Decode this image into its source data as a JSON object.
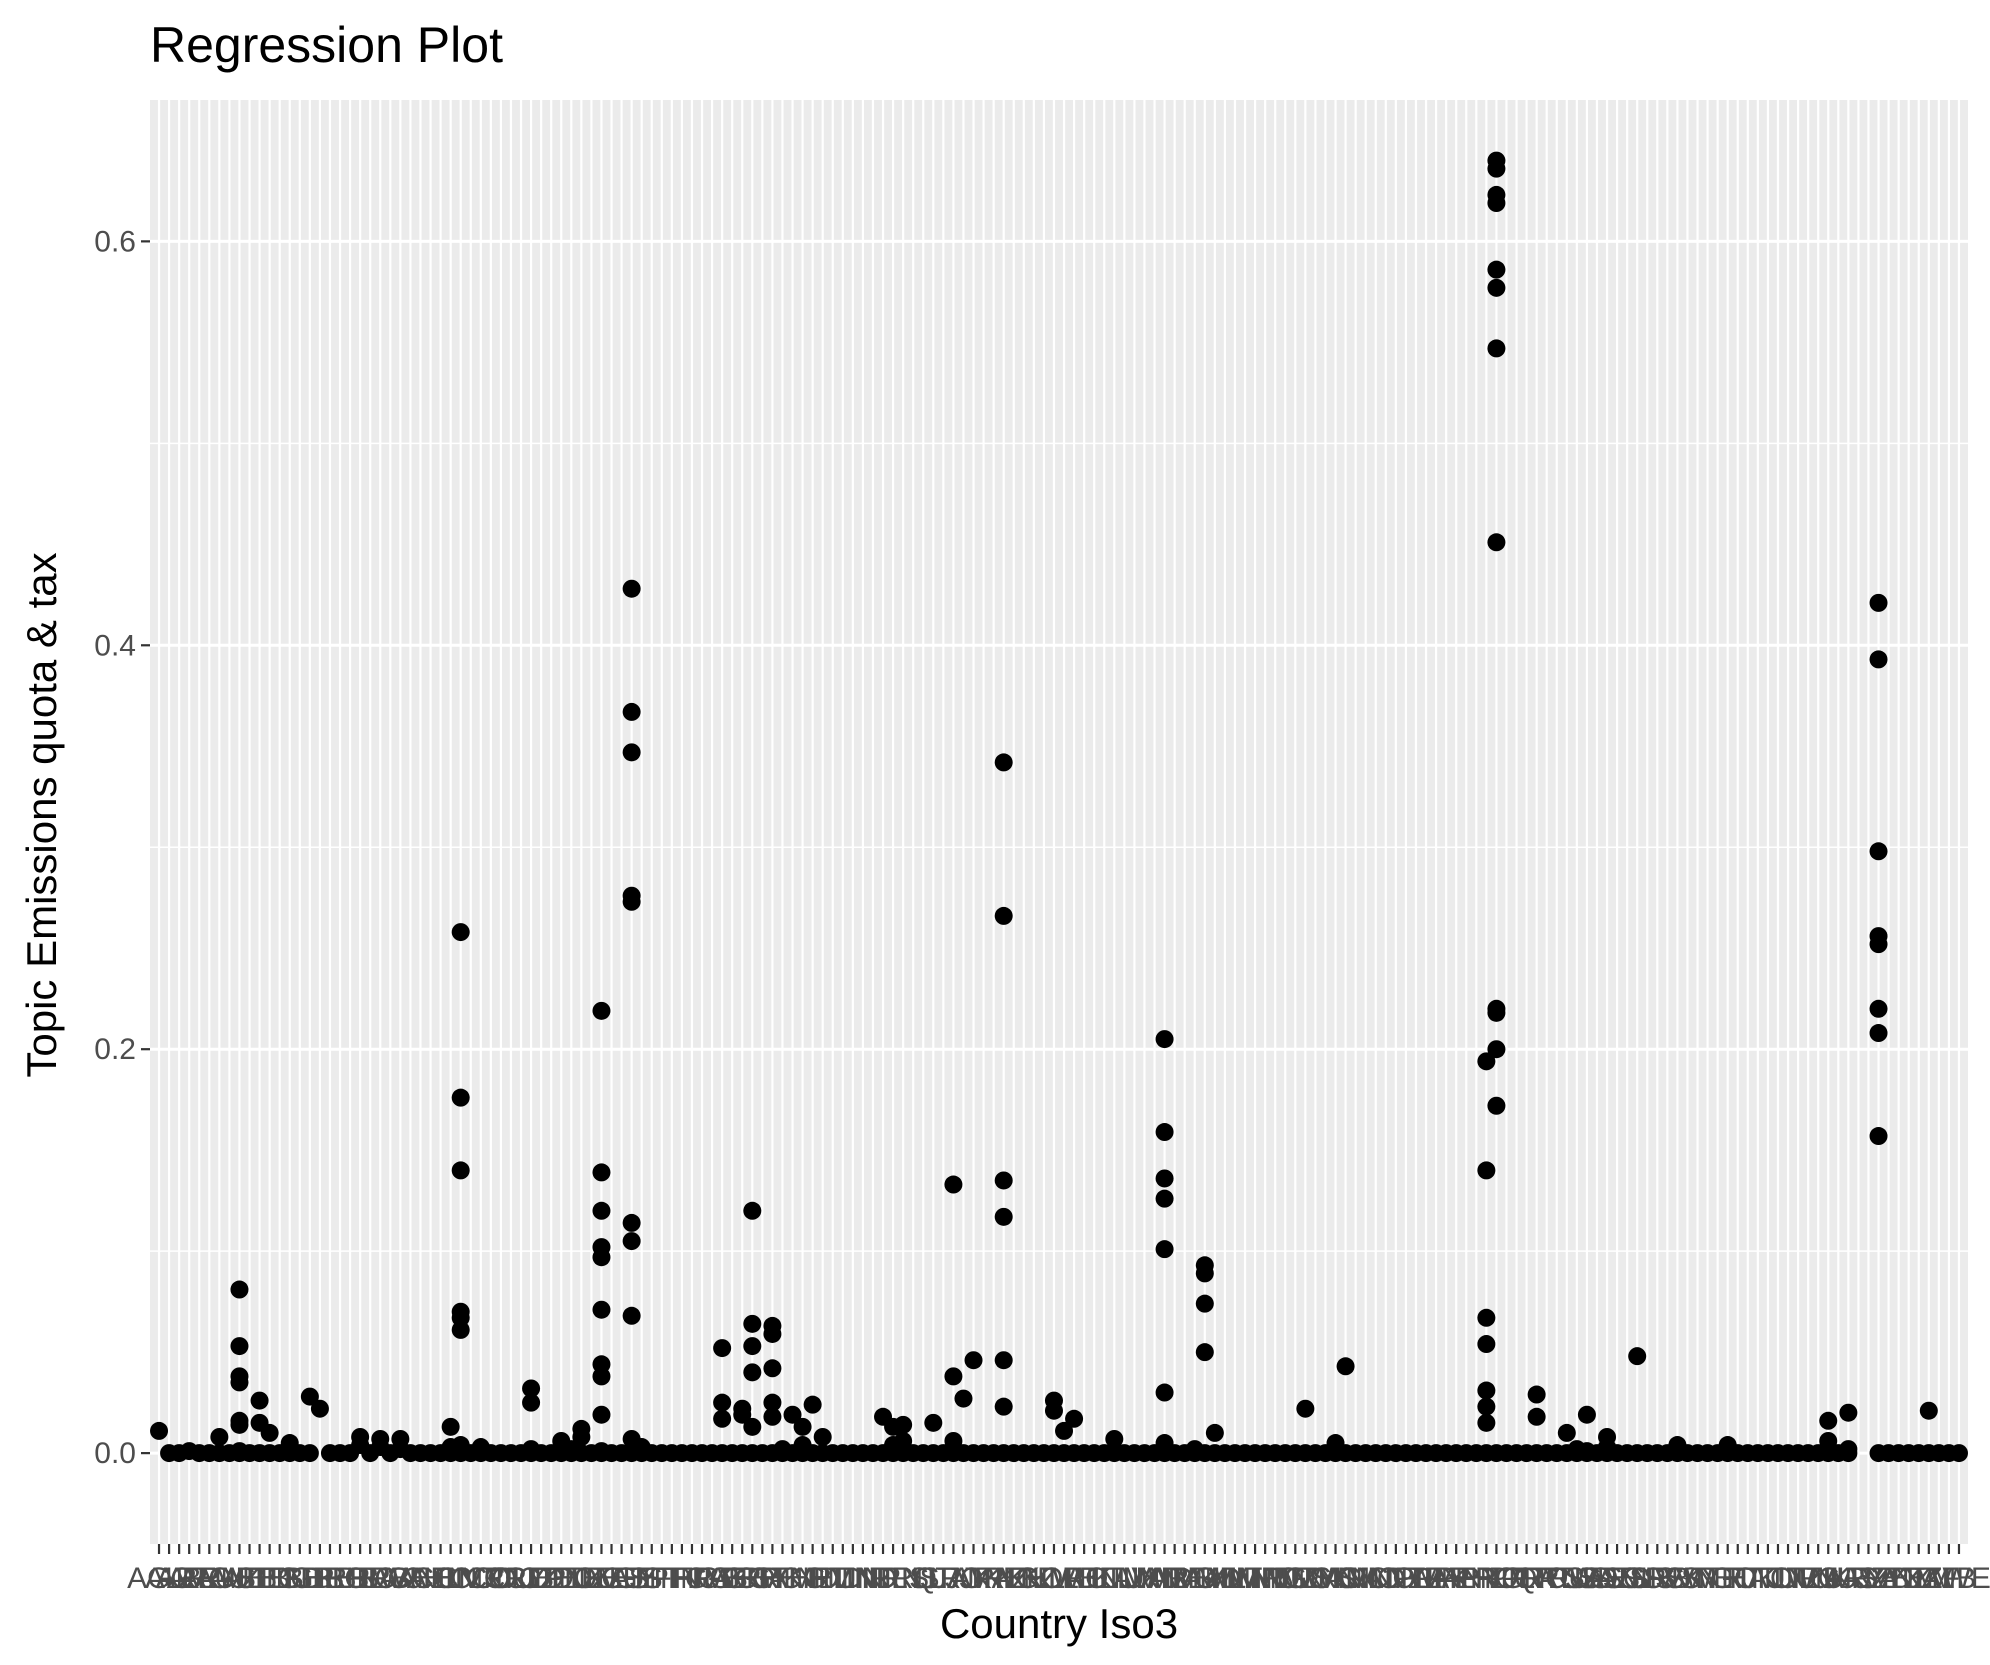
{
  "chart_data": {
    "type": "scatter",
    "title": "Regression Plot",
    "xlabel": "Country Iso3",
    "ylabel": "Topic Emissions quota & tax",
    "ylim": [
      -0.045,
      0.67
    ],
    "yticks": [
      0.0,
      0.2,
      0.4,
      0.6
    ],
    "ytick_labels": [
      "0.0",
      "0.2",
      "0.4",
      "0.6"
    ],
    "n_categories": 180,
    "x_tick_labels": [
      "AGO",
      "ALB",
      "ARE",
      "ARG",
      "ARM",
      "AUS",
      "AUT",
      "AZE",
      "BEL",
      "BEN",
      "BGD",
      "BGR",
      "BHR",
      "BIH",
      "BLR",
      "BOL",
      "BRA",
      "BRB",
      "BWA",
      "CAN",
      "CHE",
      "CHL",
      "CHN",
      "CIV",
      "CMR",
      "COD",
      "COL",
      "CRI",
      "CUB",
      "CYP",
      "CZE",
      "DEU",
      "DNK",
      "DOM",
      "DZA",
      "ECU",
      "EGY",
      "ESP",
      "EST",
      "ETH",
      "FIN",
      "FJI",
      "FRA",
      "GAB",
      "GBR",
      "GEO",
      "GHA",
      "GRC",
      "GTM",
      "HKG",
      "HND",
      "HRV",
      "HTI",
      "HUN",
      "IDN",
      "IND",
      "IRL",
      "IRN",
      "IRQ",
      "ISL",
      "ISR",
      "ITA",
      "JAM",
      "JOR",
      "JPN",
      "KAZ",
      "KEN",
      "KGZ",
      "KHM",
      "KOR",
      "KWT",
      "LAO",
      "LBN",
      "LKA",
      "LTU",
      "LUX",
      "LVA",
      "MAR",
      "MDA",
      "MDG",
      "MEX",
      "MKD",
      "MLI",
      "MLT",
      "MMR",
      "MNE",
      "MNG",
      "MOZ",
      "MUS",
      "MWI",
      "MYS",
      "NAM",
      "NGA",
      "NIC",
      "NLD",
      "NOR",
      "NPL",
      "NZL",
      "OMN",
      "PAK",
      "PAN",
      "PER",
      "PHL",
      "PNG",
      "POL",
      "PRT",
      "PRY",
      "QAT",
      "ROU",
      "RUS",
      "RWA",
      "SAU",
      "SDN",
      "SEN",
      "SGP",
      "SLV",
      "SRB",
      "SVK",
      "SVN",
      "SWE",
      "SYR",
      "TGO",
      "THA",
      "TJK",
      "TTO",
      "TUN",
      "TUR",
      "TWN",
      "TZA",
      "UGA",
      "UKR",
      "URY",
      "USA",
      "UZB",
      "VEN",
      "VNM",
      "YEM",
      "ZAF",
      "ZMB",
      "ZWE"
    ],
    "points": [
      [
        0,
        0.011
      ],
      [
        1,
        0
      ],
      [
        2,
        0
      ],
      [
        3,
        0.001
      ],
      [
        4,
        0
      ],
      [
        5,
        0
      ],
      [
        6,
        0.008
      ],
      [
        6,
        0
      ],
      [
        7,
        0
      ],
      [
        8,
        0.081
      ],
      [
        8,
        0.053
      ],
      [
        8,
        0.038
      ],
      [
        8,
        0.035
      ],
      [
        8,
        0.016
      ],
      [
        8,
        0.014
      ],
      [
        8,
        0.001
      ],
      [
        8,
        0
      ],
      [
        9,
        0
      ],
      [
        10,
        0.026
      ],
      [
        10,
        0.015
      ],
      [
        10,
        0
      ],
      [
        11,
        0.01
      ],
      [
        11,
        0
      ],
      [
        12,
        0
      ],
      [
        13,
        0.005
      ],
      [
        13,
        0
      ],
      [
        14,
        0
      ],
      [
        15,
        0.028
      ],
      [
        15,
        0
      ],
      [
        16,
        0.022
      ],
      [
        17,
        0
      ],
      [
        18,
        0
      ],
      [
        19,
        0
      ],
      [
        20,
        0.008
      ],
      [
        20,
        0.004
      ],
      [
        21,
        0
      ],
      [
        22,
        0.007
      ],
      [
        22,
        0.003
      ],
      [
        23,
        0
      ],
      [
        24,
        0.007
      ],
      [
        24,
        0.002
      ],
      [
        25,
        0
      ],
      [
        26,
        0
      ],
      [
        27,
        0
      ],
      [
        28,
        0
      ],
      [
        29,
        0.013
      ],
      [
        29,
        0.003
      ],
      [
        29,
        0
      ],
      [
        30,
        0.258
      ],
      [
        30,
        0.176
      ],
      [
        30,
        0.14
      ],
      [
        30,
        0.07
      ],
      [
        30,
        0.067
      ],
      [
        30,
        0.061
      ],
      [
        30,
        0.004
      ],
      [
        30,
        0
      ],
      [
        31,
        0
      ],
      [
        32,
        0.003
      ],
      [
        32,
        0
      ],
      [
        33,
        0
      ],
      [
        34,
        0
      ],
      [
        35,
        0
      ],
      [
        36,
        0
      ],
      [
        37,
        0.032
      ],
      [
        37,
        0.025
      ],
      [
        37,
        0.002
      ],
      [
        37,
        0
      ],
      [
        38,
        0
      ],
      [
        39,
        0
      ],
      [
        40,
        0.006
      ],
      [
        40,
        0
      ],
      [
        41,
        0.002
      ],
      [
        41,
        0
      ],
      [
        42,
        0.012
      ],
      [
        42,
        0.008
      ],
      [
        42,
        0
      ],
      [
        43,
        0
      ],
      [
        44,
        0.219
      ],
      [
        44,
        0.139
      ],
      [
        44,
        0.12
      ],
      [
        44,
        0.102
      ],
      [
        44,
        0.097
      ],
      [
        44,
        0.071
      ],
      [
        44,
        0.044
      ],
      [
        44,
        0.038
      ],
      [
        44,
        0.019
      ],
      [
        44,
        0.001
      ],
      [
        44,
        0
      ],
      [
        45,
        0
      ],
      [
        46,
        0
      ],
      [
        47,
        0.428
      ],
      [
        47,
        0.367
      ],
      [
        47,
        0.347
      ],
      [
        47,
        0.276
      ],
      [
        47,
        0.273
      ],
      [
        47,
        0.114
      ],
      [
        47,
        0.105
      ],
      [
        47,
        0.068
      ],
      [
        47,
        0.007
      ],
      [
        47,
        0
      ],
      [
        48,
        0.003
      ],
      [
        48,
        0
      ],
      [
        49,
        0
      ],
      [
        50,
        0
      ],
      [
        51,
        0
      ],
      [
        52,
        0
      ],
      [
        53,
        0
      ],
      [
        54,
        0
      ],
      [
        55,
        0
      ],
      [
        56,
        0.052
      ],
      [
        56,
        0.025
      ],
      [
        56,
        0.017
      ],
      [
        56,
        0
      ],
      [
        57,
        0
      ],
      [
        58,
        0.022
      ],
      [
        58,
        0.019
      ],
      [
        58,
        0
      ],
      [
        59,
        0.12
      ],
      [
        59,
        0.064
      ],
      [
        59,
        0.053
      ],
      [
        59,
        0.04
      ],
      [
        59,
        0.013
      ],
      [
        59,
        0
      ],
      [
        60,
        0
      ],
      [
        61,
        0.063
      ],
      [
        61,
        0.059
      ],
      [
        61,
        0.042
      ],
      [
        61,
        0.025
      ],
      [
        61,
        0.018
      ],
      [
        61,
        0
      ],
      [
        62,
        0.002
      ],
      [
        62,
        0
      ],
      [
        63,
        0.019
      ],
      [
        63,
        0
      ],
      [
        64,
        0.013
      ],
      [
        64,
        0.004
      ],
      [
        64,
        0
      ],
      [
        65,
        0.024
      ],
      [
        65,
        0
      ],
      [
        66,
        0.008
      ],
      [
        66,
        0
      ],
      [
        67,
        0
      ],
      [
        68,
        0
      ],
      [
        69,
        0
      ],
      [
        70,
        0
      ],
      [
        71,
        0
      ],
      [
        72,
        0.018
      ],
      [
        72,
        0
      ],
      [
        73,
        0.013
      ],
      [
        73,
        0.004
      ],
      [
        73,
        0
      ],
      [
        74,
        0.014
      ],
      [
        74,
        0.006
      ],
      [
        74,
        0
      ],
      [
        75,
        0
      ],
      [
        76,
        0
      ],
      [
        77,
        0.015
      ],
      [
        77,
        0
      ],
      [
        78,
        0
      ],
      [
        79,
        0.133
      ],
      [
        79,
        0.038
      ],
      [
        79,
        0.006
      ],
      [
        79,
        0
      ],
      [
        80,
        0.027
      ],
      [
        80,
        0
      ],
      [
        81,
        0.046
      ],
      [
        81,
        0
      ],
      [
        82,
        0
      ],
      [
        83,
        0
      ],
      [
        84,
        0.342
      ],
      [
        84,
        0.266
      ],
      [
        84,
        0.135
      ],
      [
        84,
        0.117
      ],
      [
        84,
        0.046
      ],
      [
        84,
        0.023
      ],
      [
        84,
        0
      ],
      [
        85,
        0
      ],
      [
        86,
        0
      ],
      [
        87,
        0
      ],
      [
        88,
        0
      ],
      [
        89,
        0.026
      ],
      [
        89,
        0.021
      ],
      [
        89,
        0
      ],
      [
        90,
        0.011
      ],
      [
        90,
        0
      ],
      [
        91,
        0.017
      ],
      [
        91,
        0
      ],
      [
        92,
        0
      ],
      [
        93,
        0
      ],
      [
        94,
        0
      ],
      [
        95,
        0.007
      ],
      [
        95,
        0
      ],
      [
        96,
        0
      ],
      [
        97,
        0
      ],
      [
        98,
        0
      ],
      [
        99,
        0
      ],
      [
        100,
        0.205
      ],
      [
        100,
        0.159
      ],
      [
        100,
        0.136
      ],
      [
        100,
        0.126
      ],
      [
        100,
        0.101
      ],
      [
        100,
        0.03
      ],
      [
        100,
        0.005
      ],
      [
        100,
        0
      ],
      [
        101,
        0
      ],
      [
        102,
        0
      ],
      [
        103,
        0.002
      ],
      [
        103,
        0
      ],
      [
        104,
        0.093
      ],
      [
        104,
        0.089
      ],
      [
        104,
        0.074
      ],
      [
        104,
        0.05
      ],
      [
        104,
        0
      ],
      [
        105,
        0.01
      ],
      [
        105,
        0
      ],
      [
        106,
        0
      ],
      [
        107,
        0
      ],
      [
        108,
        0
      ],
      [
        109,
        0
      ],
      [
        110,
        0
      ],
      [
        111,
        0
      ],
      [
        112,
        0
      ],
      [
        113,
        0
      ],
      [
        114,
        0.022
      ],
      [
        114,
        0
      ],
      [
        115,
        0
      ],
      [
        116,
        0
      ],
      [
        117,
        0.005
      ],
      [
        117,
        0
      ],
      [
        118,
        0.043
      ],
      [
        118,
        0
      ],
      [
        119,
        0
      ],
      [
        120,
        0
      ],
      [
        121,
        0
      ],
      [
        122,
        0
      ],
      [
        123,
        0
      ],
      [
        124,
        0
      ],
      [
        125,
        0
      ],
      [
        126,
        0
      ],
      [
        127,
        0
      ],
      [
        128,
        0
      ],
      [
        129,
        0
      ],
      [
        130,
        0
      ],
      [
        131,
        0
      ],
      [
        132,
        0.194
      ],
      [
        132,
        0.14
      ],
      [
        132,
        0.067
      ],
      [
        132,
        0.054
      ],
      [
        132,
        0.031
      ],
      [
        132,
        0.023
      ],
      [
        132,
        0.015
      ],
      [
        132,
        0
      ],
      [
        133,
        0.64
      ],
      [
        133,
        0.636
      ],
      [
        133,
        0.623
      ],
      [
        133,
        0.619
      ],
      [
        133,
        0.586
      ],
      [
        133,
        0.577
      ],
      [
        133,
        0.547
      ],
      [
        133,
        0.451
      ],
      [
        133,
        0.22
      ],
      [
        133,
        0.218
      ],
      [
        133,
        0.2
      ],
      [
        133,
        0.172
      ],
      [
        133,
        0
      ],
      [
        134,
        0
      ],
      [
        135,
        0
      ],
      [
        136,
        0
      ],
      [
        137,
        0.029
      ],
      [
        137,
        0.018
      ],
      [
        137,
        0
      ],
      [
        138,
        0
      ],
      [
        139,
        0
      ],
      [
        140,
        0.01
      ],
      [
        140,
        0
      ],
      [
        141,
        0.002
      ],
      [
        141,
        0
      ],
      [
        142,
        0.019
      ],
      [
        142,
        0.001
      ],
      [
        142,
        0
      ],
      [
        143,
        0
      ],
      [
        144,
        0.008
      ],
      [
        144,
        0.003
      ],
      [
        144,
        0
      ],
      [
        145,
        0
      ],
      [
        146,
        0
      ],
      [
        147,
        0.048
      ],
      [
        147,
        0
      ],
      [
        148,
        0
      ],
      [
        149,
        0
      ],
      [
        150,
        0
      ],
      [
        151,
        0.004
      ],
      [
        151,
        0
      ],
      [
        152,
        0
      ],
      [
        153,
        0
      ],
      [
        154,
        0
      ],
      [
        155,
        0
      ],
      [
        156,
        0.004
      ],
      [
        156,
        0
      ],
      [
        157,
        0
      ],
      [
        158,
        0
      ],
      [
        159,
        0
      ],
      [
        160,
        0
      ],
      [
        161,
        0
      ],
      [
        162,
        0
      ],
      [
        163,
        0
      ],
      [
        164,
        0
      ],
      [
        165,
        0
      ],
      [
        166,
        0
      ],
      [
        167,
        0
      ],
      [
        168,
        0
      ],
      [
        166,
        0.016
      ],
      [
        166,
        0.006
      ],
      [
        168,
        0.02
      ],
      [
        168,
        0.002
      ],
      [
        171,
        0.421
      ],
      [
        171,
        0.393
      ],
      [
        171,
        0.298
      ],
      [
        171,
        0.256
      ],
      [
        171,
        0.252
      ],
      [
        171,
        0.22
      ],
      [
        171,
        0.208
      ],
      [
        171,
        0.157
      ],
      [
        171,
        0
      ],
      [
        172,
        0
      ],
      [
        173,
        0
      ],
      [
        174,
        0
      ],
      [
        175,
        0
      ],
      [
        176,
        0.021
      ],
      [
        176,
        0
      ],
      [
        177,
        0
      ],
      [
        178,
        0
      ],
      [
        179,
        0
      ]
    ]
  }
}
